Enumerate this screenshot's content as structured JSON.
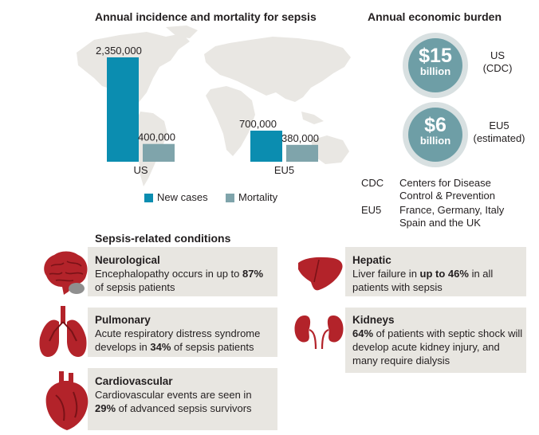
{
  "incidence": {
    "title": "Annual incidence and mortality for sepsis",
    "legend": [
      "New cases",
      "Mortality"
    ]
  },
  "chart_data": {
    "type": "bar",
    "title": "Annual incidence and mortality for sepsis",
    "categories": [
      "US",
      "EU5"
    ],
    "series": [
      {
        "name": "New cases",
        "values": [
          2350000,
          700000
        ],
        "labels": [
          "2,350,000",
          "700,000"
        ],
        "color": "#0b8db0"
      },
      {
        "name": "Mortality",
        "values": [
          400000,
          380000
        ],
        "labels": [
          "400,000",
          "380,000"
        ],
        "color": "#7fa4ab"
      }
    ],
    "ylim": [
      0,
      2350000
    ],
    "grid": false,
    "legend_position": "bottom"
  },
  "burden": {
    "title": "Annual economic burden",
    "items": [
      {
        "amount": "$15",
        "unit": "billion",
        "region": "US",
        "note": "(CDC)"
      },
      {
        "amount": "$6",
        "unit": "billion",
        "region": "EU5",
        "note": "(estimated)"
      }
    ],
    "abbreviations": [
      {
        "abbr": "CDC",
        "definition": "Centers for Disease Control & Prevention"
      },
      {
        "abbr": "EU5",
        "definition": "France, Germany, Italy Spain  and the UK"
      }
    ]
  },
  "conditions": {
    "title": "Sepsis-related conditions",
    "items": [
      {
        "icon": "brain-icon",
        "title": "Neurological",
        "parts": [
          "Encephalopathy occurs in up to ",
          "87%",
          " of sepsis patients"
        ]
      },
      {
        "icon": "lungs-icon",
        "title": "Pulmonary",
        "parts": [
          "Acute respiratory distress syndrome develops in ",
          "34%",
          " of sepsis patients"
        ]
      },
      {
        "icon": "heart-icon",
        "title": "Cardiovascular",
        "parts": [
          "Cardiovascular events are seen in ",
          "29%",
          " of advanced sepsis survivors"
        ]
      },
      {
        "icon": "liver-icon",
        "title": "Hepatic",
        "parts": [
          "Liver failure in ",
          "up to 46%",
          " in all patients with sepsis"
        ]
      },
      {
        "icon": "kidneys-icon",
        "title": "Kidneys",
        "parts": [
          "",
          "64%",
          " of patients with septic shock will develop acute kidney injury, and many require dialysis"
        ]
      }
    ]
  },
  "colors": {
    "new_cases": "#0b8db0",
    "mortality": "#7fa4ab",
    "card_bg": "#e8e6e1",
    "circle": "#6e9ea6",
    "organ": "#b3232a"
  }
}
